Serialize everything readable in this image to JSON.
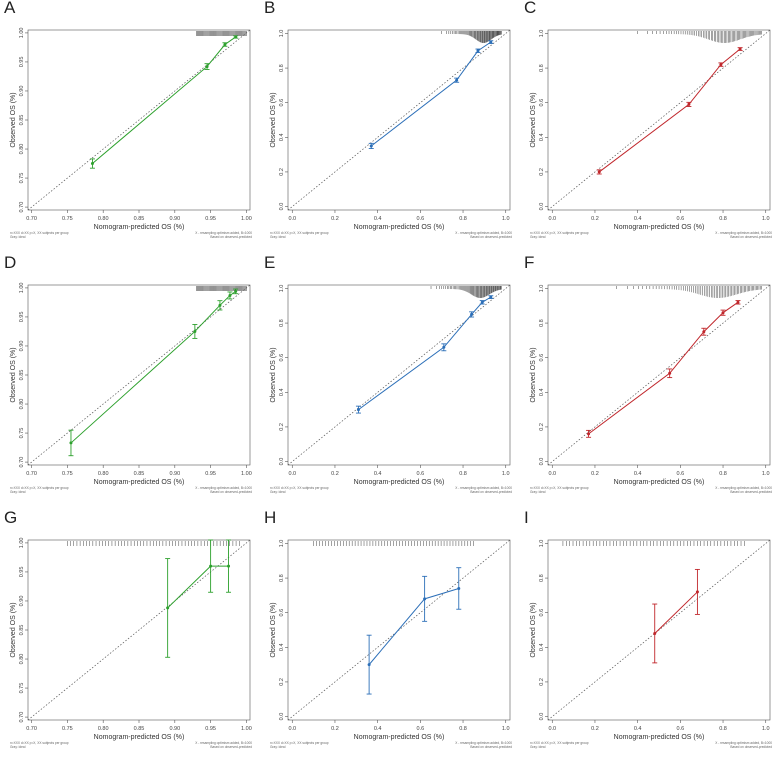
{
  "figure": {
    "x_axis_title": "Nomogram-predicted OS (%)",
    "y_axis_title": "Observed OS (%)",
    "note_left_line1": "n=XXX d=XX p=X, XX subjects per group",
    "note_left_line2": "Gray: ideal",
    "note_right_line1": "X - resampling optimism added, B=1000",
    "note_right_line2": "Based on observed-predicted"
  },
  "colors": {
    "green": "#2ca02c",
    "blue": "#2c6fb8",
    "red": "#c0262b"
  },
  "chart_data": [
    {
      "panel": "A",
      "type": "line",
      "color_key": "green",
      "xlim": [
        0.695,
        1.005
      ],
      "ylim": [
        0.695,
        1.005
      ],
      "ticks": [
        0.7,
        0.75,
        0.8,
        0.85,
        0.9,
        0.95,
        1.0
      ],
      "tick_labels": [
        "0.70",
        "0.75",
        "0.80",
        "0.85",
        "0.90",
        "0.95",
        "1.00"
      ],
      "series": [
        {
          "name": "calibration",
          "x": [
            0.785,
            0.945,
            0.97,
            0.985
          ],
          "y": [
            0.775,
            0.942,
            0.98,
            0.993
          ],
          "err": [
            0.008,
            0.005,
            0.003,
            0.002
          ]
        }
      ],
      "rug": {
        "from": 0.93,
        "to": 1.0,
        "dense": false
      }
    },
    {
      "panel": "B",
      "type": "line",
      "color_key": "blue",
      "xlim": [
        -0.02,
        1.02
      ],
      "ylim": [
        -0.02,
        1.02
      ],
      "ticks": [
        0.0,
        0.2,
        0.4,
        0.6,
        0.8,
        1.0
      ],
      "tick_labels": [
        "0.0",
        "0.2",
        "0.4",
        "0.6",
        "0.8",
        "1.0"
      ],
      "series": [
        {
          "name": "calibration",
          "x": [
            0.37,
            0.77,
            0.87,
            0.93
          ],
          "y": [
            0.35,
            0.73,
            0.9,
            0.95
          ],
          "err": [
            0.015,
            0.012,
            0.01,
            0.008
          ]
        }
      ],
      "rug": {
        "from": 0.7,
        "to": 0.98,
        "dense": true
      }
    },
    {
      "panel": "C",
      "type": "line",
      "color_key": "red",
      "xlim": [
        -0.02,
        1.02
      ],
      "ylim": [
        -0.02,
        1.02
      ],
      "ticks": [
        0.0,
        0.2,
        0.4,
        0.6,
        0.8,
        1.0
      ],
      "tick_labels": [
        "0.0",
        "0.2",
        "0.4",
        "0.6",
        "0.8",
        "1.0"
      ],
      "series": [
        {
          "name": "calibration",
          "x": [
            0.22,
            0.64,
            0.79,
            0.88
          ],
          "y": [
            0.2,
            0.59,
            0.82,
            0.91
          ],
          "err": [
            0.012,
            0.012,
            0.01,
            0.008
          ]
        }
      ],
      "rug": {
        "from": 0.4,
        "to": 0.98,
        "dense": true
      }
    },
    {
      "panel": "D",
      "type": "line",
      "color_key": "green",
      "xlim": [
        0.695,
        1.005
      ],
      "ylim": [
        0.695,
        1.005
      ],
      "ticks": [
        0.7,
        0.75,
        0.8,
        0.85,
        0.9,
        0.95,
        1.0
      ],
      "tick_labels": [
        "0.70",
        "0.75",
        "0.80",
        "0.85",
        "0.90",
        "0.95",
        "1.00"
      ],
      "series": [
        {
          "name": "calibration",
          "x": [
            0.755,
            0.928,
            0.963,
            0.977,
            0.985
          ],
          "y": [
            0.733,
            0.925,
            0.97,
            0.987,
            0.994
          ],
          "err": [
            0.022,
            0.012,
            0.008,
            0.006,
            0.004
          ]
        }
      ],
      "rug": {
        "from": 0.93,
        "to": 1.0,
        "dense": false
      }
    },
    {
      "panel": "E",
      "type": "line",
      "color_key": "blue",
      "xlim": [
        -0.02,
        1.02
      ],
      "ylim": [
        -0.02,
        1.02
      ],
      "ticks": [
        0.0,
        0.2,
        0.4,
        0.6,
        0.8,
        1.0
      ],
      "tick_labels": [
        "0.0",
        "0.2",
        "0.4",
        "0.6",
        "0.8",
        "1.0"
      ],
      "series": [
        {
          "name": "calibration",
          "x": [
            0.31,
            0.71,
            0.84,
            0.89,
            0.93
          ],
          "y": [
            0.3,
            0.66,
            0.85,
            0.92,
            0.95
          ],
          "err": [
            0.02,
            0.02,
            0.015,
            0.01,
            0.008
          ]
        }
      ],
      "rug": {
        "from": 0.65,
        "to": 0.98,
        "dense": true
      }
    },
    {
      "panel": "F",
      "type": "line",
      "color_key": "red",
      "xlim": [
        -0.02,
        1.02
      ],
      "ylim": [
        -0.02,
        1.02
      ],
      "ticks": [
        0.0,
        0.2,
        0.4,
        0.6,
        0.8,
        1.0
      ],
      "tick_labels": [
        "0.0",
        "0.2",
        "0.4",
        "0.6",
        "0.8",
        "1.0"
      ],
      "series": [
        {
          "name": "calibration",
          "x": [
            0.17,
            0.55,
            0.71,
            0.8,
            0.87
          ],
          "y": [
            0.16,
            0.51,
            0.75,
            0.86,
            0.92
          ],
          "err": [
            0.02,
            0.025,
            0.02,
            0.015,
            0.01
          ]
        }
      ],
      "rug": {
        "from": 0.3,
        "to": 0.98,
        "dense": true
      }
    },
    {
      "panel": "G",
      "type": "line",
      "color_key": "green",
      "xlim": [
        0.695,
        1.005
      ],
      "ylim": [
        0.695,
        1.005
      ],
      "ticks": [
        0.7,
        0.75,
        0.8,
        0.85,
        0.9,
        0.95,
        1.0
      ],
      "tick_labels": [
        "0.70",
        "0.75",
        "0.80",
        "0.85",
        "0.90",
        "0.95",
        "1.00"
      ],
      "series": [
        {
          "name": "calibration",
          "x": [
            0.89,
            0.95,
            0.975
          ],
          "y": [
            0.888,
            0.96,
            0.96
          ],
          "err": [
            0.085,
            0.045,
            0.045
          ]
        }
      ],
      "rug": {
        "from": 0.75,
        "to": 0.99,
        "dense": false
      }
    },
    {
      "panel": "H",
      "type": "line",
      "color_key": "blue",
      "xlim": [
        -0.02,
        1.02
      ],
      "ylim": [
        -0.02,
        1.02
      ],
      "ticks": [
        0.0,
        0.2,
        0.4,
        0.6,
        0.8,
        1.0
      ],
      "tick_labels": [
        "0.0",
        "0.2",
        "0.4",
        "0.6",
        "0.8",
        "1.0"
      ],
      "series": [
        {
          "name": "calibration",
          "x": [
            0.36,
            0.62,
            0.78
          ],
          "y": [
            0.3,
            0.68,
            0.74
          ],
          "err": [
            0.17,
            0.13,
            0.12
          ]
        }
      ],
      "rug": {
        "from": 0.1,
        "to": 0.85,
        "dense": false
      }
    },
    {
      "panel": "I",
      "type": "line",
      "color_key": "red",
      "xlim": [
        -0.02,
        1.02
      ],
      "ylim": [
        -0.02,
        1.02
      ],
      "ticks": [
        0.0,
        0.2,
        0.4,
        0.6,
        0.8,
        1.0
      ],
      "tick_labels": [
        "0.0",
        "0.2",
        "0.4",
        "0.6",
        "0.8",
        "1.0"
      ],
      "series": [
        {
          "name": "calibration",
          "x": [
            0.48,
            0.68
          ],
          "y": [
            0.48,
            0.72
          ],
          "err": [
            0.17,
            0.13
          ]
        }
      ],
      "rug": {
        "from": 0.05,
        "to": 0.9,
        "dense": false
      }
    }
  ]
}
